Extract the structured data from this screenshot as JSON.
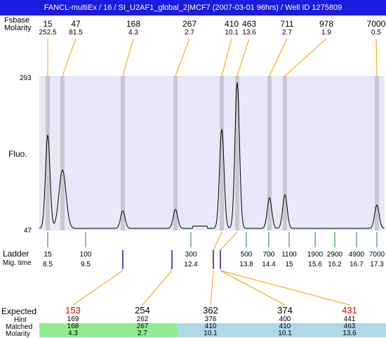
{
  "window": {
    "title": "FANCL-multiEx / 16 / SI_U2AF1_global_2|MCF7 (2007-03-01 96hrs) / Well ID 1275809"
  },
  "top_header": {
    "size_label": "Fsbase",
    "molarity_label": "Molarity"
  },
  "peaks": [
    {
      "size": "15",
      "molarity": "252.5"
    },
    {
      "size": "47",
      "molarity": "81.5"
    },
    {
      "size": "168",
      "molarity": "4.3"
    },
    {
      "size": "267",
      "molarity": "2.7"
    },
    {
      "size": "410",
      "molarity": "10.1"
    },
    {
      "size": "463",
      "molarity": "13.6"
    },
    {
      "size": "711",
      "molarity": "2.7"
    },
    {
      "size": "978",
      "molarity": "1.9"
    },
    {
      "size": "7000",
      "molarity": "0.5"
    }
  ],
  "y_axis": {
    "label": "Fluo.",
    "max": "293",
    "min": "47"
  },
  "ladder": {
    "label": "Ladder",
    "migtime_label": "Mig. time",
    "bands": [
      {
        "size": "15",
        "time": "8.5"
      },
      {
        "size": "100",
        "time": "9.5"
      },
      {
        "size": "300",
        "time": "12.4"
      },
      {
        "size": "500",
        "time": "13.8"
      },
      {
        "size": "700",
        "time": "14.4"
      },
      {
        "size": "1100",
        "time": "15"
      },
      {
        "size": "1900",
        "time": "15.6"
      },
      {
        "size": "2900",
        "time": "16.2"
      },
      {
        "size": "4900",
        "time": "16.7"
      },
      {
        "size": "7000",
        "time": "17.3"
      }
    ]
  },
  "expected_table": {
    "expected_label": "Expected",
    "hint_label": "Hint",
    "matched_label": "Matched",
    "molarity_label": "Molarity",
    "columns": [
      {
        "expected": "153",
        "hint": "169",
        "matched": "168",
        "molarity": "4.3",
        "flag": "red",
        "group": "green"
      },
      {
        "expected": "254",
        "hint": "262",
        "matched": "267",
        "molarity": "2.7",
        "flag": "black",
        "group": "green"
      },
      {
        "expected": "362",
        "hint": "376",
        "matched": "410",
        "molarity": "10.1",
        "flag": "black",
        "group": "blue"
      },
      {
        "expected": "374",
        "hint": "400",
        "matched": "410",
        "molarity": "10.1",
        "flag": "black",
        "group": "blue"
      },
      {
        "expected": "431",
        "hint": "441",
        "matched": "463",
        "molarity": "13.6",
        "flag": "red",
        "group": "blue"
      }
    ]
  },
  "colors": {
    "title_bar": "#1c1ce0",
    "plot_background": "#e8e8f8",
    "peak_band": "#c8c8d0",
    "ladder_tick": "#1a8a1a",
    "match_line": "#f5a000",
    "matched_green": "#90ee90",
    "matched_blue": "#add8e6",
    "warning_red": "#ee0000"
  }
}
